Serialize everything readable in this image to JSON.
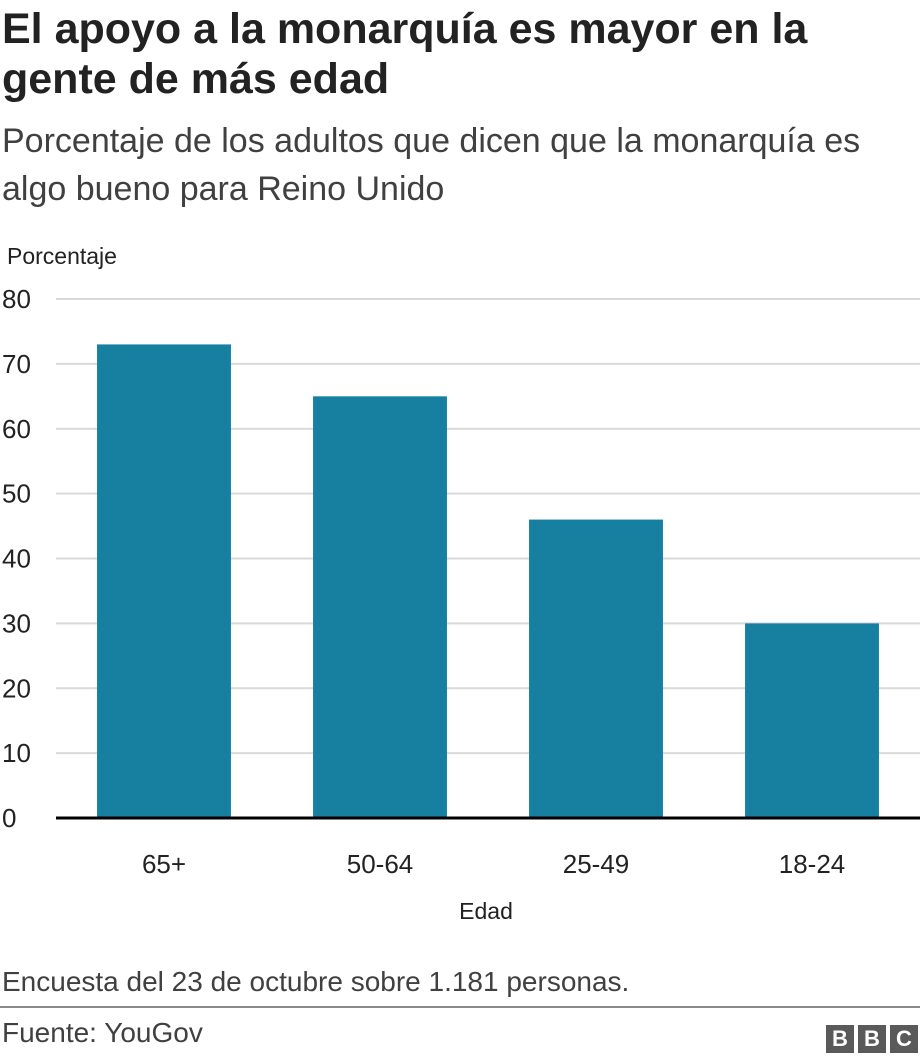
{
  "header": {
    "title": "El apoyo a la monarquía es mayor en la gente de más edad",
    "subtitle": "Porcentaje de los adultos que dicen que la monarquía es algo bueno para Reino Unido"
  },
  "chart_data": {
    "type": "bar",
    "ylabel": "Porcentaje",
    "xlabel": "Edad",
    "categories": [
      "65+",
      "50-64",
      "25-49",
      "18-24"
    ],
    "values": [
      73,
      65,
      46,
      30
    ],
    "ylim": [
      0,
      80
    ],
    "yticks": [
      0,
      10,
      20,
      30,
      40,
      50,
      60,
      70,
      80
    ],
    "grid": true,
    "bar_color": "#1780a1"
  },
  "footer": {
    "note": "Encuesta del 23 de octubre sobre 1.181 personas.",
    "source": "Fuente: YouGov",
    "logo_letters": [
      "B",
      "B",
      "C"
    ]
  }
}
